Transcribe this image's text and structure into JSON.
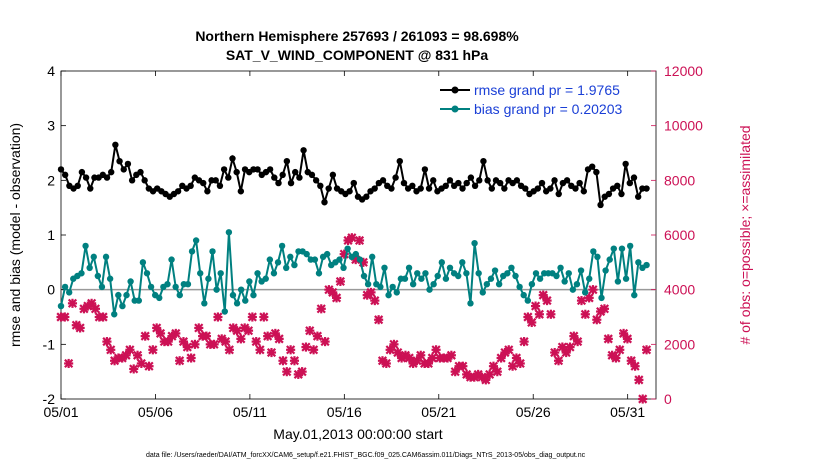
{
  "chart_data": {
    "type": "line",
    "title_line1": "Northern Hemisphere 257693 / 261093 = 98.698%",
    "title_line2": "SAT_V_WIND_COMPONENT @ 831 hPa",
    "xlabel": "May.01,2013 00:00:00 start",
    "ylabel_left": "rmse and bias (model - observation)",
    "ylabel_right": "# of obs: o=possible; ×=assimilated",
    "footnote": "data file: /Users/raeder/DAI/ATM_forcXX/CAM6_setup/f.e21.FHIST_BGC.f09_025.CAM6assim.011/Diags_NTrS_2013-05/obs_diag_output.nc",
    "x_ticks": [
      "05/01",
      "05/06",
      "05/11",
      "05/16",
      "05/21",
      "05/26",
      "05/31"
    ],
    "x_tick_days": [
      0,
      5,
      10,
      15,
      20,
      25,
      30
    ],
    "x_range_days": [
      0,
      31.5
    ],
    "ylim_left": [
      -2,
      4
    ],
    "y_ticks_left": [
      "-2",
      "-1",
      "0",
      "1",
      "2",
      "3",
      "4"
    ],
    "ylim_right": [
      0,
      12000
    ],
    "y_ticks_right": [
      "0",
      "2000",
      "4000",
      "6000",
      "8000",
      "10000",
      "12000"
    ],
    "colors": {
      "rmse": "#000000",
      "bias": "#008080",
      "obs": "#cc1155",
      "zero": "#999999"
    },
    "series": [
      {
        "name": "rmse grand pr = 1.9765",
        "key": "rmse",
        "axis": "left",
        "values": [
          2.2,
          2.1,
          1.9,
          1.85,
          1.9,
          2.15,
          2.05,
          1.85,
          2.05,
          2.05,
          2.1,
          2.05,
          2.15,
          2.65,
          2.35,
          2.2,
          2.3,
          2.0,
          2.1,
          2.15,
          2.0,
          1.85,
          1.8,
          1.85,
          1.8,
          1.75,
          1.7,
          1.75,
          1.8,
          1.9,
          1.85,
          1.9,
          2.05,
          2.0,
          1.95,
          1.8,
          2.0,
          2.0,
          1.9,
          2.2,
          2.05,
          2.4,
          2.15,
          1.8,
          2.2,
          2.15,
          2.2,
          2.2,
          2.1,
          2.15,
          2.2,
          2.05,
          1.95,
          2.1,
          2.35,
          1.95,
          2.15,
          2.05,
          2.55,
          2.15,
          2.1,
          2.0,
          1.9,
          1.6,
          1.85,
          2.1,
          1.85,
          1.8,
          1.75,
          1.8,
          1.95,
          1.7,
          1.65,
          1.7,
          1.8,
          1.85,
          1.95,
          2.0,
          1.9,
          1.85,
          2.05,
          2.35,
          1.95,
          1.85,
          1.9,
          1.8,
          1.85,
          2.2,
          1.85,
          2.0,
          1.8,
          1.85,
          1.9,
          2.0,
          1.9,
          1.95,
          1.85,
          1.95,
          2.05,
          1.9,
          2.0,
          2.35,
          2.0,
          1.85,
          2.0,
          1.95,
          1.85,
          2.0,
          1.95,
          2.0,
          1.9,
          1.85,
          1.75,
          1.8,
          1.85,
          1.95,
          1.8,
          1.85,
          2.0,
          1.75,
          1.95,
          2.0,
          1.9,
          1.85,
          1.95,
          1.8,
          2.2,
          2.25,
          2.15,
          1.55,
          1.7,
          1.75,
          1.85,
          1.9,
          1.75,
          2.3,
          1.95,
          2.05,
          1.7,
          1.85,
          1.85
        ]
      },
      {
        "name": "bias grand pr = 0.20203",
        "key": "bias",
        "axis": "left",
        "values": [
          -0.3,
          0.05,
          -0.05,
          0.2,
          0.25,
          0.3,
          0.8,
          0.4,
          0.6,
          0.25,
          0.05,
          0.6,
          0.2,
          -0.45,
          -0.1,
          -0.3,
          -0.1,
          0.15,
          -0.2,
          -0.2,
          0.5,
          0.3,
          0.05,
          -0.1,
          -0.15,
          0.05,
          0.1,
          0.55,
          0.05,
          -0.1,
          0.1,
          0.1,
          0.7,
          0.9,
          0.3,
          -0.25,
          0.2,
          0.7,
          0.0,
          0.3,
          -0.4,
          1.05,
          -0.1,
          -0.25,
          0.0,
          -0.2,
          0.15,
          -0.1,
          0.3,
          0.15,
          0.2,
          0.55,
          0.3,
          0.5,
          0.8,
          0.4,
          0.6,
          0.45,
          0.7,
          0.7,
          0.65,
          0.55,
          0.55,
          0.3,
          0.6,
          0.65,
          0.45,
          0.5,
          0.55,
          0.4,
          0.75,
          0.6,
          0.65,
          0.55,
          0.25,
          0.1,
          0.6,
          0.1,
          0.05,
          0.4,
          -0.1,
          0.05,
          -0.05,
          0.2,
          0.2,
          0.4,
          0.1,
          0.3,
          0.2,
          0.3,
          0.0,
          0.1,
          0.25,
          0.5,
          0.2,
          0.4,
          0.3,
          0.25,
          0.5,
          0.3,
          -0.25,
          0.85,
          0.3,
          -0.05,
          0.1,
          0.2,
          0.35,
          0.1,
          0.25,
          0.3,
          0.4,
          0.25,
          0.05,
          -0.1,
          -0.2,
          0.1,
          0.3,
          0.2,
          0.3,
          0.3,
          0.3,
          0.25,
          0.4,
          0.15,
          0.3,
          0.0,
          0.1,
          0.35,
          -0.05,
          0.2,
          0.7,
          0.6,
          -0.15,
          0.35,
          0.55,
          0.75,
          0.15,
          0.75,
          0.2,
          0.8,
          -0.1,
          0.5,
          0.4,
          0.45
        ]
      },
      {
        "name": "# of obs assimilated",
        "key": "obs",
        "axis": "right",
        "values": [
          3000,
          3000,
          1300,
          3500,
          2700,
          2600,
          3300,
          3400,
          3500,
          3300,
          3000,
          3000,
          2100,
          1800,
          1400,
          1500,
          1500,
          1600,
          1800,
          1100,
          1600,
          1300,
          2300,
          1200,
          1800,
          2600,
          2400,
          2100,
          2100,
          2300,
          2400,
          1400,
          2100,
          1900,
          1500,
          2000,
          2600,
          2300,
          2300,
          2000,
          2000,
          3000,
          2200,
          2100,
          1800,
          2600,
          2500,
          2200,
          2600,
          2500,
          3000,
          2100,
          1800,
          3000,
          2300,
          1700,
          2400,
          2200,
          1400,
          1000,
          1800,
          1400,
          900,
          1000,
          1900,
          2500,
          1800,
          2300,
          3300,
          2100,
          4000,
          3900,
          3700,
          4300,
          5300,
          5800,
          5900,
          5100,
          5800,
          5000,
          3800,
          3900,
          3600,
          2900,
          1400,
          1300,
          1800,
          2000,
          1700,
          1500,
          1600,
          1500,
          1300,
          1400,
          1600,
          1300,
          1300,
          1500,
          1800,
          1500,
          1500,
          1500,
          1600,
          1000,
          1200,
          1200,
          900,
          800,
          800,
          900,
          800,
          700,
          900,
          1200,
          1000,
          1500,
          1700,
          1800,
          1200,
          1500,
          1300,
          2100,
          3000,
          2800,
          3400,
          3100,
          3800,
          3600,
          3100,
          1700,
          1400,
          1900,
          1700,
          1900,
          2300,
          2100,
          3600,
          3100,
          3700,
          4000,
          2900,
          3200,
          3300,
          2200,
          1600,
          1500,
          1800,
          2400,
          2200,
          1400,
          1200,
          700,
          0,
          1800
        ],
        "xmax_days": 31
      }
    ]
  }
}
